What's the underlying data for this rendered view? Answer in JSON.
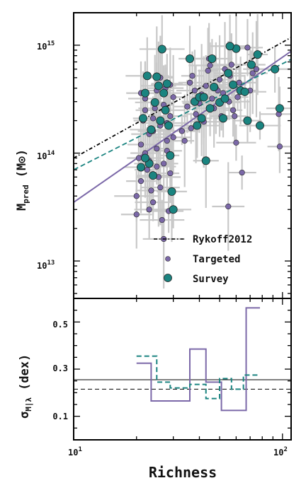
{
  "chart_data": [
    {
      "type": "scatter",
      "title": "",
      "xlabel": "Richness",
      "ylabel": "M_pred (M_sun)",
      "ylabel_main": "M",
      "ylabel_sub": "pred",
      "ylabel_unit_open": "(M",
      "ylabel_unit_close": ")",
      "xscale": "log",
      "yscale": "log",
      "xlim": [
        10,
        110
      ],
      "ylim": [
        4500000000000.0,
        2000000000000000.0
      ],
      "x_tick_labels": [
        {
          "exp": "1",
          "base": "10",
          "value": 10
        },
        {
          "exp": "2",
          "base": "10",
          "value": 100
        }
      ],
      "y_tick_labels": [
        {
          "base": "10",
          "exp": "13",
          "value": 10000000000000.0
        },
        {
          "base": "10",
          "exp": "14",
          "value": 100000000000000.0
        },
        {
          "base": "10",
          "exp": "15",
          "value": 1000000000000000.0
        }
      ],
      "legend_position": "lower-right",
      "legend": [
        "Rykoff2012",
        "Targeted",
        "Survey"
      ],
      "colors": {
        "purple": "#7b68a8",
        "teal": "#1a8480",
        "error_bars": "#c8c8c8"
      },
      "lines": [
        {
          "name": "Rykoff2012",
          "style": "dash-dot",
          "color": "#000000",
          "points": [
            [
              10,
              90000000000000.0
            ],
            [
              110,
              1180000000000000.0
            ]
          ]
        },
        {
          "name": "Targeted",
          "style": "solid",
          "color": "#7b68a8",
          "points": [
            [
              10,
              35000000000000.0
            ],
            [
              110,
              880000000000000.0
            ]
          ]
        },
        {
          "name": "Survey",
          "style": "dashed",
          "color": "#1a8480",
          "points": [
            [
              10,
              70000000000000.0
            ],
            [
              110,
              740000000000000.0
            ]
          ]
        }
      ],
      "series": [
        {
          "name": "Targeted",
          "color": "#7b68a8",
          "points": [
            [
              20,
              27000000000000.0
            ],
            [
              20.5,
              90000000000000.0
            ],
            [
              21,
              55000000000000.0
            ],
            [
              21.5,
              200000000000000.0
            ],
            [
              22,
              320000000000000.0
            ],
            [
              22.5,
              70000000000000.0
            ],
            [
              23,
              150000000000000.0
            ],
            [
              23.5,
              45000000000000.0
            ],
            [
              24,
              35000000000000.0
            ],
            [
              24.5,
              260000000000000.0
            ],
            [
              25,
              110000000000000.0
            ],
            [
              25.5,
              60000000000000.0
            ],
            [
              26,
              180000000000000.0
            ],
            [
              26.5,
              24000000000000.0
            ],
            [
              27,
              80000000000000.0
            ],
            [
              27.5,
              400000000000000.0
            ],
            [
              28,
              130000000000000.0
            ],
            [
              28.5,
              29000000000000.0
            ],
            [
              29,
              220000000000000.0
            ],
            [
              30,
              330000000000000.0
            ],
            [
              21,
              120000000000000.0
            ],
            [
              22,
              250000000000000.0
            ],
            [
              23,
              85000000000000.0
            ],
            [
              24,
              160000000000000.0
            ],
            [
              25,
              380000000000000.0
            ],
            [
              26,
              48000000000000.0
            ],
            [
              27,
              280000000000000.0
            ],
            [
              28,
              105000000000000.0
            ],
            [
              29,
              65000000000000.0
            ],
            [
              30,
              140000000000000.0
            ],
            [
              20,
              40000000000000.0
            ],
            [
              21,
              360000000000000.0
            ],
            [
              22,
              100000000000000.0
            ],
            [
              23,
              30000000000000.0
            ],
            [
              24,
              210000000000000.0
            ],
            [
              25,
              75000000000000.0
            ],
            [
              26,
              500000000000000.0
            ],
            [
              27,
              16000000000000.0
            ],
            [
              28,
              190000000000000.0
            ],
            [
              29,
              430000000000000.0
            ],
            [
              33,
              160000000000000.0
            ],
            [
              35,
              270000000000000.0
            ],
            [
              36,
              450000000000000.0
            ],
            [
              38,
              380000000000000.0
            ],
            [
              38.5,
              230000000000000.0
            ],
            [
              39,
              180000000000000.0
            ],
            [
              40,
              290000000000000.0
            ],
            [
              41,
              350000000000000.0
            ],
            [
              42,
              195000000000000.0
            ],
            [
              43,
              420000000000000.0
            ],
            [
              44,
              580000000000000.0
            ],
            [
              45,
              650000000000000.0
            ],
            [
              46,
              320000000000000.0
            ],
            [
              47,
              260000000000000.0
            ],
            [
              48,
              400000000000000.0
            ],
            [
              50,
              480000000000000.0
            ],
            [
              51,
              220000000000000.0
            ],
            [
              52,
              360000000000000.0
            ],
            [
              55,
              32000000000000.0
            ],
            [
              55.5,
              300000000000000.0
            ],
            [
              56,
              520000000000000.0
            ],
            [
              57,
              660000000000000.0
            ],
            [
              58,
              250000000000000.0
            ],
            [
              59,
              220000000000000.0
            ],
            [
              60,
              125000000000000.0
            ],
            [
              61,
              330000000000000.0
            ],
            [
              62,
              450000000000000.0
            ],
            [
              64,
              66000000000000.0
            ],
            [
              68,
              950000000000000.0
            ],
            [
              70,
              380000000000000.0
            ],
            [
              72,
              550000000000000.0
            ],
            [
              75,
              600000000000000.0
            ],
            [
              96,
              230000000000000.0
            ],
            [
              97,
              115000000000000.0
            ],
            [
              34,
              130000000000000.0
            ],
            [
              36.5,
              170000000000000.0
            ],
            [
              37,
              520000000000000.0
            ],
            [
              44.5,
              750000000000000.0
            ],
            [
              49,
              380000000000000.0
            ],
            [
              53,
              600000000000000.0
            ]
          ]
        },
        {
          "name": "Survey",
          "color": "#1a8480",
          "points": [
            [
              21,
              74000000000000.0
            ],
            [
              21.5,
              210000000000000.0
            ],
            [
              22,
              360000000000000.0
            ],
            [
              22.5,
              520000000000000.0
            ],
            [
              23,
              80000000000000.0
            ],
            [
              23.5,
              165000000000000.0
            ],
            [
              24,
              62000000000000.0
            ],
            [
              24.5,
              295000000000000.0
            ],
            [
              25,
              510000000000000.0
            ],
            [
              25.5,
              420000000000000.0
            ],
            [
              26,
              200000000000000.0
            ],
            [
              26.5,
              920000000000000.0
            ],
            [
              27,
              360000000000000.0
            ],
            [
              27.5,
              250000000000000.0
            ],
            [
              28,
              440000000000000.0
            ],
            [
              28.5,
              180000000000000.0
            ],
            [
              29,
              95000000000000.0
            ],
            [
              29.5,
              44000000000000.0
            ],
            [
              30,
              30000000000000.0
            ],
            [
              22,
              90000000000000.0
            ],
            [
              36,
              750000000000000.0
            ],
            [
              38,
              300000000000000.0
            ],
            [
              39,
              180000000000000.0
            ],
            [
              40,
              330000000000000.0
            ],
            [
              41,
              210000000000000.0
            ],
            [
              42,
              330000000000000.0
            ],
            [
              43,
              85000000000000.0
            ],
            [
              45,
              260000000000000.0
            ],
            [
              46,
              750000000000000.0
            ],
            [
              47,
              410000000000000.0
            ],
            [
              50,
              295000000000000.0
            ],
            [
              52,
              210000000000000.0
            ],
            [
              53,
              320000000000000.0
            ],
            [
              55,
              550000000000000.0
            ],
            [
              58,
              430000000000000.0
            ],
            [
              60,
              930000000000000.0
            ],
            [
              63,
              380000000000000.0
            ],
            [
              66,
              370000000000000.0
            ],
            [
              68,
              200000000000000.0
            ],
            [
              71,
              660000000000000.0
            ],
            [
              76,
              820000000000000.0
            ],
            [
              78,
              180000000000000.0
            ],
            [
              92,
              600000000000000.0
            ],
            [
              97,
              260000000000000.0
            ],
            [
              56,
              980000000000000.0
            ]
          ]
        }
      ]
    },
    {
      "type": "line",
      "title": "",
      "xlabel": "Richness",
      "ylabel": "sigma_M|lambda (dex)",
      "ylabel_main": "σ",
      "ylabel_sub": "M|λ",
      "ylabel_unit": "(dex)",
      "xscale": "log",
      "xlim": [
        10,
        110
      ],
      "ylim": [
        0.0,
        0.6
      ],
      "y_tick_labels": [
        "0.1",
        "0.3",
        "0.5"
      ],
      "y_tick_values": [
        0.1,
        0.3,
        0.5
      ],
      "reference_lines": [
        {
          "style": "solid",
          "color": "#000000",
          "value": 0.255
        },
        {
          "style": "dashed",
          "color": "#000000",
          "value": 0.215
        }
      ],
      "series": [
        {
          "name": "Targeted",
          "style": "solid step",
          "color": "#7b68a8",
          "edges": [
            20,
            23.5,
            29,
            36,
            43,
            51,
            57,
            67,
            78
          ],
          "values": [
            0.325,
            0.165,
            0.165,
            0.385,
            0.245,
            0.125,
            0.125,
            0.56
          ]
        },
        {
          "name": "Survey",
          "style": "dashed step",
          "color": "#1a8480",
          "edges": [
            20,
            25,
            29,
            36,
            43,
            50,
            57,
            65,
            78
          ],
          "values": [
            0.355,
            0.245,
            0.22,
            0.235,
            0.175,
            0.26,
            0.215,
            0.275
          ]
        }
      ]
    }
  ]
}
